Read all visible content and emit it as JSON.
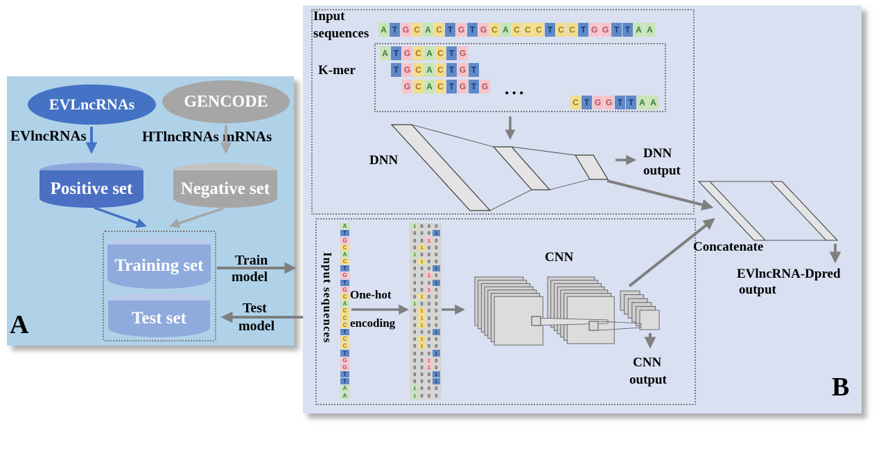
{
  "figure": {
    "panel_a": {
      "label": "A",
      "db1": "EVLncRNAs",
      "db2": "GENCODE",
      "db1_out": "EVlncRNAs",
      "db2_out": "HTlncRNAs mRNAs",
      "positive": "Positive set",
      "negative": "Negative set",
      "training": "Training set",
      "test": "Test set",
      "train_arrow_1": "Train",
      "train_arrow_2": "model",
      "test_arrow_1": "Test",
      "test_arrow_2": "model",
      "colors": {
        "positive_blue": "#4472c4",
        "negative_gray": "#a6a6a6",
        "set_blue": "#8faadc",
        "panel_bg": "#b0d2e9"
      }
    },
    "panel_b": {
      "label": "B",
      "input_seq_line1": "Input",
      "input_seq_line2": "sequences",
      "kmer": "K-mer",
      "ellipsis": "...",
      "dnn": "DNN",
      "dnn_output_1": "DNN",
      "dnn_output_2": "output",
      "input_seq_vertical": "Input sequences",
      "onehot_1": "One-hot",
      "onehot_2": "encoding",
      "cnn": "CNN",
      "cnn_output_1": "CNN",
      "cnn_output_2": "output",
      "concatenate": "Concatenate",
      "final_output_1": "EVlncRNA-Dpred",
      "final_output_2": "output",
      "sequence": "ATGCACTGTGCACCCTCCTGGTTAA",
      "kmers": [
        "ATGCACTG",
        "TGCACTGT",
        "GCACTGTG"
      ],
      "last_kmer": "CTGGTTAA",
      "onehot_map": {
        "A": "1000",
        "C": "0100",
        "G": "0010",
        "T": "0001"
      },
      "base_colors": {
        "A": {
          "bg": "#c9e5b7",
          "fg": "#3f7d3f"
        },
        "T": {
          "bg": "#6089c7",
          "fg": "#15396b"
        },
        "G": {
          "bg": "#f6c4cb",
          "fg": "#b2525f"
        },
        "C": {
          "bg": "#f3dd8e",
          "fg": "#9c7a1e"
        }
      },
      "colors": {
        "panel_bg": "#d9e0f1",
        "layer_fill": "#e4e4e4",
        "arrow_gray": "#7f7f7f"
      }
    }
  }
}
